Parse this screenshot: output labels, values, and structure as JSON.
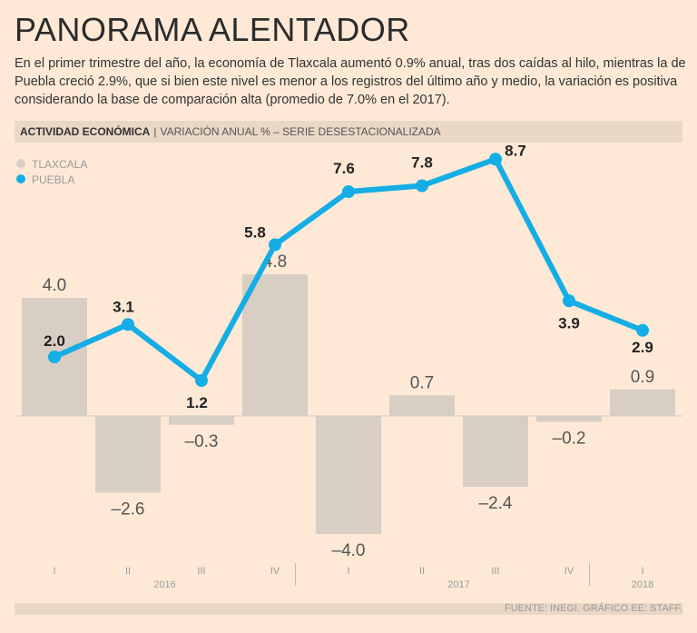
{
  "title": "PANORAMA ALENTADOR",
  "subtitle": "En el primer trimestre del año, la economía de Tlaxcala aumentó 0.9% anual, tras dos caídas al hilo, mientras la de Puebla creció 2.9%, que si bien este nivel es menor a los registros del último año y medio, la variación es positiva considerando la base de comparación alta (promedio de 7.0% en el 2017).",
  "band": {
    "bold": "ACTIVIDAD ECONÓMICA",
    "sep": "|",
    "rest": "VARIACIÓN ANUAL % – SERIE DESESTACIONALIZADA"
  },
  "source": "FUENTE: INEGI. GRÁFICO EE: STAFF.",
  "chart_data": {
    "type": "bar+line",
    "categories": [
      "I",
      "II",
      "III",
      "IV",
      "I",
      "II",
      "III",
      "IV",
      "I"
    ],
    "years": [
      {
        "label": "2016",
        "span": 4
      },
      {
        "label": "2017",
        "span": 4
      },
      {
        "label": "2018",
        "span": 1
      }
    ],
    "series": [
      {
        "name": "TLAXCALA",
        "type": "bar",
        "color": "#d8cec3",
        "values": [
          4.0,
          -2.6,
          -0.3,
          4.8,
          -4.0,
          0.7,
          -2.4,
          -0.2,
          0.9
        ]
      },
      {
        "name": "PUEBLA",
        "type": "line",
        "color": "#15ade5",
        "values": [
          2.0,
          3.1,
          1.2,
          5.8,
          7.6,
          7.8,
          8.7,
          3.9,
          2.9
        ]
      }
    ],
    "legend": "top-left",
    "grid": false
  }
}
